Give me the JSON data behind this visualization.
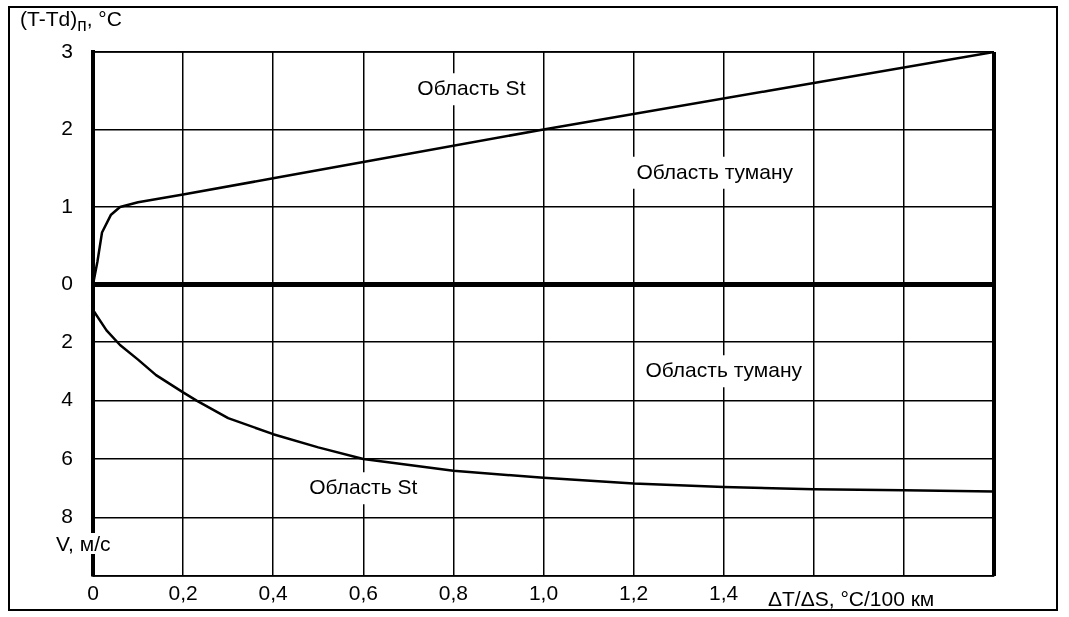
{
  "chart_data": [
    {
      "type": "line",
      "ylabel": "(T-Td)$_{п}$, °C",
      "xlim": [
        0,
        2.0
      ],
      "ylim": [
        0,
        3
      ],
      "xticks": [
        0,
        0.2,
        0.4,
        0.6,
        0.8,
        1.0,
        1.2,
        1.4,
        1.6,
        1.8,
        2.0
      ],
      "yticks": [
        0,
        1,
        2,
        3
      ],
      "tick_labels": "y",
      "grid": true,
      "legend": false,
      "marker": "none",
      "line_style": "solid",
      "series": [
        {
          "color": "#000000",
          "x": [
            0,
            0.01,
            0.02,
            0.04,
            0.06,
            0.1,
            0.2,
            0.4,
            0.6,
            1.0,
            1.5,
            2.0
          ],
          "values": [
            0,
            0.3,
            0.67,
            0.9,
            1.0,
            1.06,
            1.16,
            1.37,
            1.58,
            2.0,
            2.5,
            3.0
          ]
        }
      ],
      "annotations": [
        "Область St",
        "Область туману"
      ]
    },
    {
      "type": "line",
      "xlabel": "ΔT/ΔS, °C/100 км",
      "ylabel": "V, м/с",
      "xlim": [
        0,
        2.0
      ],
      "ylim": [
        10,
        0
      ],
      "xticks": [
        0,
        {
          "value": 0.2,
          "label": "0,2"
        },
        {
          "value": 0.4,
          "label": "0,4"
        },
        {
          "value": 0.6,
          "label": "0,6"
        },
        {
          "value": 0.8,
          "label": "0,8"
        },
        {
          "value": 1.0,
          "label": "1,0"
        },
        {
          "value": 1.2,
          "label": "1,2"
        },
        {
          "value": 1.4,
          "label": "1,4"
        },
        {
          "value": 1.6,
          "label": null
        },
        {
          "value": 1.8,
          "label": null
        },
        {
          "value": 2.0,
          "label": null
        }
      ],
      "yticks": [
        2,
        4,
        6,
        8
      ],
      "grid": true,
      "legend": false,
      "marker": "none",
      "line_style": "solid",
      "series": [
        {
          "color": "#000000",
          "x": [
            0,
            0.03,
            0.06,
            0.1,
            0.14,
            0.2,
            0.23,
            0.3,
            0.4,
            0.5,
            0.6,
            0.8,
            1.0,
            1.2,
            1.4,
            1.6,
            1.8,
            2.0
          ],
          "values": [
            0.9,
            1.6,
            2.1,
            2.6,
            3.13,
            3.72,
            4.0,
            4.6,
            5.15,
            5.6,
            6.0,
            6.4,
            6.64,
            6.84,
            6.96,
            7.03,
            7.07,
            7.11
          ]
        }
      ],
      "annotations": [
        "Область туману",
        "Область St"
      ]
    }
  ]
}
